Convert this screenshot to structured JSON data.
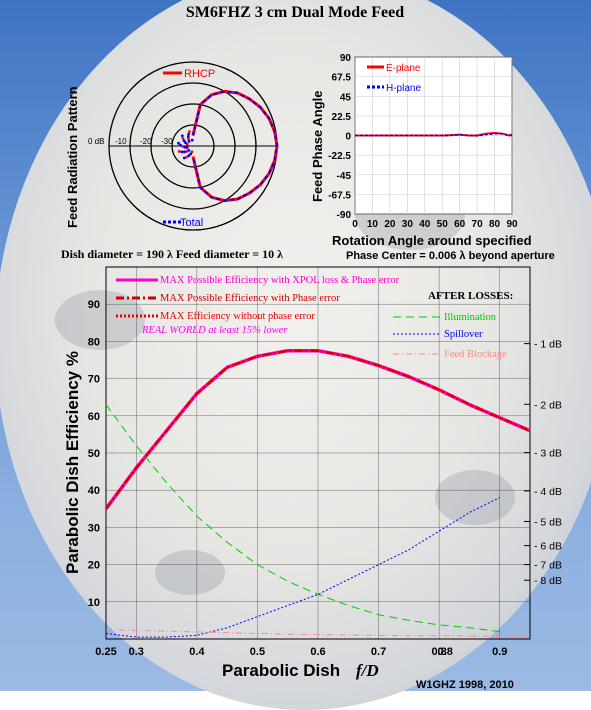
{
  "title": "SM6FHZ 3 cm Dual Mode Feed",
  "credit": "W1GHZ 1998, 2010",
  "colors": {
    "e_plane": "#ff0000",
    "h_plane": "#0000ff",
    "total": "#0000ff",
    "xpol": "#ff00cc",
    "phase": "#cc0000",
    "nophase": "#ee0000",
    "illum": "#00cc00",
    "spill": "#0000ff",
    "block": "#ff8888",
    "annot_magenta": "#ff00ff"
  },
  "dims_note": "Dish diameter = 190 λ  Feed diameter = 10 λ",
  "polar": {
    "ylabel": "Feed Radiation Pattern",
    "ring_labels": [
      "0 dB",
      "-10",
      "-20",
      "-30"
    ],
    "legend": [
      {
        "label": "RHCP",
        "color": "#ff0000"
      },
      {
        "label": "Total",
        "color": "#0000ff"
      }
    ],
    "chart_data": {
      "type": "polar",
      "r_db_ticks": [
        0,
        -10,
        -20,
        -30
      ],
      "series": [
        {
          "name": "RHCP",
          "angle_deg": [
            -90,
            -80,
            -70,
            -60,
            -50,
            -40,
            -30,
            -20,
            -10,
            0,
            10,
            20,
            30,
            40,
            50,
            60,
            70,
            80,
            90
          ],
          "db": [
            -35,
            -20,
            -14,
            -10,
            -7,
            -5,
            -3,
            -1.5,
            -0.5,
            0,
            -0.5,
            -1.5,
            -3,
            -5,
            -7,
            -10,
            -14,
            -20,
            -35
          ]
        },
        {
          "name": "Total",
          "angle_deg": [
            -90,
            -80,
            -70,
            -60,
            -50,
            -40,
            -30,
            -20,
            -10,
            0,
            10,
            20,
            30,
            40,
            50,
            60,
            70,
            80,
            90
          ],
          "db": [
            -35,
            -20,
            -14,
            -10,
            -7,
            -5,
            -3,
            -1.5,
            -0.5,
            0,
            -0.5,
            -1.5,
            -3,
            -5,
            -7,
            -10,
            -14,
            -20,
            -35
          ]
        }
      ]
    }
  },
  "phase": {
    "ylabel": "Feed Phase Angle",
    "xlabel": "Rotation Angle around specified",
    "xlabel2": "Phase Center = 0.006 λ beyond aperture",
    "yticks": [
      "90",
      "67.5",
      "45",
      "22.5",
      "0",
      "-22.5",
      "-45",
      "-67.5",
      "-90"
    ],
    "xticks": [
      "0",
      "10",
      "20",
      "30",
      "40",
      "50",
      "60",
      "70",
      "80",
      "90"
    ],
    "legend": [
      {
        "label": "E-plane",
        "color": "#ff0000"
      },
      {
        "label": "H-plane",
        "color": "#0000ff"
      }
    ],
    "chart_data": {
      "type": "line",
      "xlim": [
        0,
        90
      ],
      "ylim": [
        -90,
        90
      ],
      "series": [
        {
          "name": "E-plane",
          "x": [
            0,
            10,
            20,
            30,
            40,
            50,
            55,
            60,
            65,
            70,
            75,
            80,
            85,
            88,
            90
          ],
          "y": [
            0,
            0,
            0,
            0,
            0,
            0,
            0.5,
            1,
            0,
            0,
            2,
            3,
            2,
            0,
            1
          ]
        },
        {
          "name": "H-plane",
          "x": [
            0,
            10,
            20,
            30,
            40,
            50,
            55,
            60,
            65,
            70,
            75,
            80,
            85,
            88,
            90
          ],
          "y": [
            0,
            0,
            0,
            0,
            0,
            0,
            0,
            1,
            0,
            -0.5,
            1,
            2,
            2,
            0,
            0
          ]
        }
      ]
    }
  },
  "main": {
    "ylabel": "Parabolic Dish Efficiency %",
    "xlabel": "Parabolic Dish",
    "xlabel_italic": "f/D",
    "after_losses": "AFTER LOSSES:",
    "real_world": "REAL WORLD at least 15% lower",
    "yticks": [
      "10",
      "20",
      "30",
      "40",
      "50",
      "60",
      "70",
      "80",
      "90"
    ],
    "xticks": [
      "0.25",
      "0.3",
      "0.4",
      "0.5",
      "0.6",
      "0.7",
      "0.8",
      "0.8",
      "0.9"
    ],
    "db_ticks": [
      {
        "label": "1 dB",
        "eff": 79.4
      },
      {
        "label": "2 dB",
        "eff": 63.1
      },
      {
        "label": "3 dB",
        "eff": 50.1
      },
      {
        "label": "4 dB",
        "eff": 39.8
      },
      {
        "label": "5 dB",
        "eff": 31.6
      },
      {
        "label": "6 dB",
        "eff": 25.1
      },
      {
        "label": "7 dB",
        "eff": 20.0
      },
      {
        "label": "8 dB",
        "eff": 15.8
      }
    ],
    "legend_left": [
      {
        "label": "MAX Possible Efficiency with XPOL loss & Phase error",
        "color": "#ff00cc"
      },
      {
        "label": "MAX Possible Efficiency with Phase error",
        "color": "#cc0000"
      },
      {
        "label": "MAX Efficiency without phase error",
        "color": "#ee0000"
      }
    ],
    "legend_right": [
      {
        "label": "Illumination",
        "color": "#00cc00"
      },
      {
        "label": "Spillover",
        "color": "#0000ff"
      },
      {
        "label": "Feed Blockage",
        "color": "#ff8888"
      }
    ],
    "chart_data": {
      "type": "line",
      "xlabel": "Parabolic Dish f/D",
      "ylabel": "Parabolic Dish Efficiency %",
      "xlim": [
        0.25,
        0.95
      ],
      "ylim": [
        0,
        100
      ],
      "x": [
        0.25,
        0.3,
        0.35,
        0.4,
        0.45,
        0.5,
        0.55,
        0.6,
        0.65,
        0.7,
        0.75,
        0.8,
        0.85,
        0.9,
        0.95
      ],
      "series": [
        {
          "name": "MAX Possible Efficiency with XPOL loss & Phase error",
          "values": [
            35,
            46,
            56,
            66,
            73,
            76,
            77.5,
            77.5,
            76,
            73.5,
            70.5,
            67,
            63,
            59.5,
            56
          ]
        },
        {
          "name": "MAX Possible Efficiency with Phase error",
          "values": [
            35,
            46,
            56,
            66,
            73,
            76,
            77.5,
            77.5,
            76,
            73.5,
            70.5,
            67,
            63,
            59.5,
            56
          ]
        },
        {
          "name": "MAX Efficiency without phase error",
          "values": [
            35,
            46,
            56,
            66,
            73,
            76,
            77.5,
            77.5,
            76,
            73.5,
            70.5,
            67,
            63,
            59.5,
            56
          ]
        },
        {
          "name": "Illumination",
          "values": [
            63,
            52,
            42,
            33,
            26,
            20,
            15.5,
            12,
            9,
            6.5,
            5,
            3.8,
            3,
            2,
            null
          ]
        },
        {
          "name": "Spillover",
          "values": [
            1.5,
            0.5,
            0.5,
            1,
            3,
            6,
            9,
            12,
            16,
            20,
            24,
            29,
            34,
            38,
            null
          ]
        },
        {
          "name": "Feed Blockage",
          "values": [
            2.5,
            2.3,
            2.1,
            1.9,
            1.7,
            1.5,
            1.3,
            1.2,
            1.1,
            1.0,
            0.9,
            0.9,
            0.8,
            0.7,
            0.7
          ]
        }
      ]
    }
  }
}
